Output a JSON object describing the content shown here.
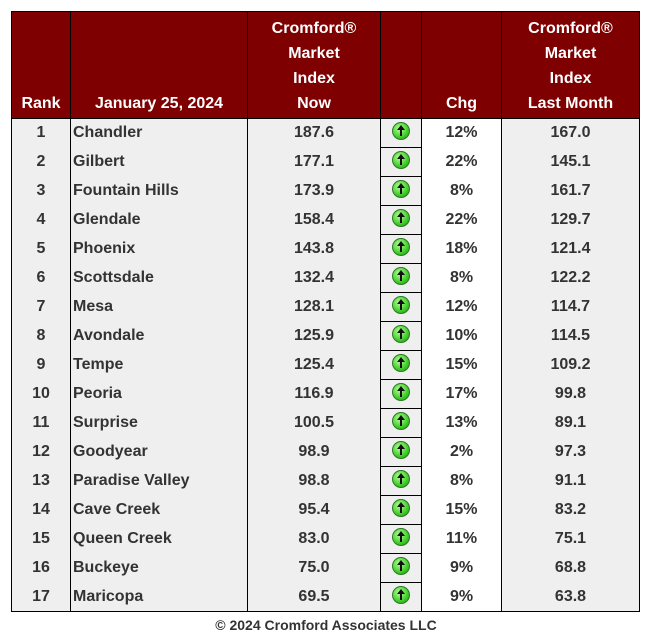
{
  "header": {
    "rank": "Rank",
    "date": "January 25, 2024",
    "now": [
      "Cromford®",
      "Market",
      "Index",
      "Now"
    ],
    "chg": "Chg",
    "last": [
      "Cromford®",
      "Market",
      "Index",
      "Last Month"
    ]
  },
  "colors": {
    "header_bg": "#7f0000",
    "arrow": "#3fcc2a"
  },
  "rows": [
    {
      "rank": "1",
      "city": "Chandler",
      "now": "187.6",
      "trend": "up-arrow-icon",
      "chg": "12%",
      "last": "167.0"
    },
    {
      "rank": "2",
      "city": "Gilbert",
      "now": "177.1",
      "trend": "up-arrow-icon",
      "chg": "22%",
      "last": "145.1"
    },
    {
      "rank": "3",
      "city": "Fountain Hills",
      "now": "173.9",
      "trend": "up-arrow-icon",
      "chg": "8%",
      "last": "161.7"
    },
    {
      "rank": "4",
      "city": "Glendale",
      "now": "158.4",
      "trend": "up-arrow-icon",
      "chg": "22%",
      "last": "129.7"
    },
    {
      "rank": "5",
      "city": "Phoenix",
      "now": "143.8",
      "trend": "up-arrow-icon",
      "chg": "18%",
      "last": "121.4"
    },
    {
      "rank": "6",
      "city": "Scottsdale",
      "now": "132.4",
      "trend": "up-arrow-icon",
      "chg": "8%",
      "last": "122.2"
    },
    {
      "rank": "7",
      "city": "Mesa",
      "now": "128.1",
      "trend": "up-arrow-icon",
      "chg": "12%",
      "last": "114.7"
    },
    {
      "rank": "8",
      "city": "Avondale",
      "now": "125.9",
      "trend": "up-arrow-icon",
      "chg": "10%",
      "last": "114.5"
    },
    {
      "rank": "9",
      "city": "Tempe",
      "now": "125.4",
      "trend": "up-arrow-icon",
      "chg": "15%",
      "last": "109.2"
    },
    {
      "rank": "10",
      "city": "Peoria",
      "now": "116.9",
      "trend": "up-arrow-icon",
      "chg": "17%",
      "last": "99.8"
    },
    {
      "rank": "11",
      "city": "Surprise",
      "now": "100.5",
      "trend": "up-arrow-icon",
      "chg": "13%",
      "last": "89.1"
    },
    {
      "rank": "12",
      "city": "Goodyear",
      "now": "98.9",
      "trend": "up-arrow-icon",
      "chg": "2%",
      "last": "97.3"
    },
    {
      "rank": "13",
      "city": "Paradise Valley",
      "now": "98.8",
      "trend": "up-arrow-icon",
      "chg": "8%",
      "last": "91.1"
    },
    {
      "rank": "14",
      "city": "Cave Creek",
      "now": "95.4",
      "trend": "up-arrow-icon",
      "chg": "15%",
      "last": "83.2"
    },
    {
      "rank": "15",
      "city": "Queen Creek",
      "now": "83.0",
      "trend": "up-arrow-icon",
      "chg": "11%",
      "last": "75.1"
    },
    {
      "rank": "16",
      "city": "Buckeye",
      "now": "75.0",
      "trend": "up-arrow-icon",
      "chg": "9%",
      "last": "68.8"
    },
    {
      "rank": "17",
      "city": "Maricopa",
      "now": "69.5",
      "trend": "up-arrow-icon",
      "chg": "9%",
      "last": "63.8"
    }
  ],
  "footer": "© 2024 Cromford Associates LLC"
}
